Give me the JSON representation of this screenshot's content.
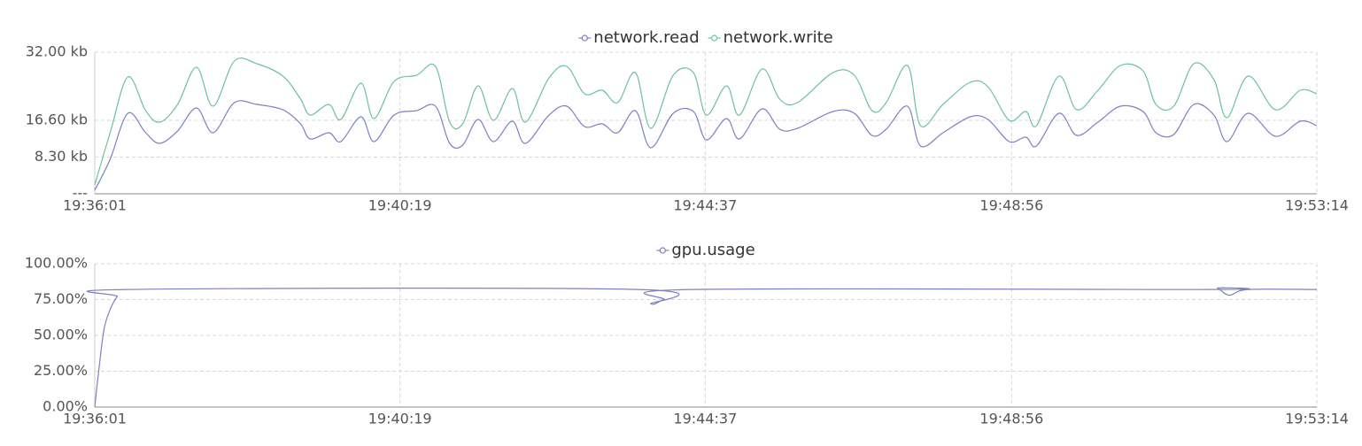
{
  "chart_data": [
    {
      "type": "line",
      "x": [
        "19:36:01",
        "19:36:14",
        "19:36:29",
        "19:36:44",
        "19:36:56",
        "19:37:11",
        "19:37:27",
        "19:37:41",
        "19:37:59",
        "19:38:18",
        "19:38:40",
        "19:38:55",
        "19:39:03",
        "19:39:19",
        "19:39:29",
        "19:39:46",
        "19:39:57",
        "19:40:14",
        "19:40:33",
        "19:40:49",
        "19:41:01",
        "19:41:12",
        "19:41:25",
        "19:41:38",
        "19:41:54",
        "19:42:05",
        "19:42:25",
        "19:42:40",
        "19:42:55",
        "19:43:10",
        "19:43:23",
        "19:43:38",
        "19:43:51",
        "19:44:10",
        "19:44:27",
        "19:44:38",
        "19:44:55",
        "19:45:06",
        "19:45:25",
        "19:45:40",
        "19:45:55",
        "19:46:25",
        "19:46:43",
        "19:46:58",
        "19:47:10",
        "19:47:28",
        "19:47:39",
        "19:47:58",
        "19:48:21",
        "19:48:36",
        "19:48:54",
        "19:49:08",
        "19:49:17",
        "19:49:36",
        "19:49:51",
        "19:50:09",
        "19:50:28",
        "19:50:47",
        "19:50:58",
        "19:51:13",
        "19:51:30",
        "19:51:47",
        "19:51:58",
        "19:52:16",
        "19:52:39",
        "19:53:00",
        "19:53:14"
      ],
      "series": [
        {
          "name": "network.read",
          "color": "#7d80c3",
          "values": [
            0.8,
            7.8,
            18.2,
            13.8,
            11.4,
            14.2,
            19.4,
            13.8,
            20.6,
            20.2,
            19,
            15.8,
            12.4,
            13.8,
            11.8,
            17.4,
            11.8,
            17.8,
            18.8,
            19.8,
            11.4,
            11,
            16.8,
            11.8,
            16.4,
            11.4,
            17.8,
            19.8,
            15.2,
            15.8,
            13.8,
            18.8,
            10.4,
            18.2,
            18.6,
            12.2,
            17,
            12.4,
            19.2,
            14.6,
            14.8,
            18.6,
            18.2,
            13.2,
            14.6,
            19.8,
            10.8,
            13.8,
            17.4,
            16.8,
            11.8,
            12.8,
            10.8,
            18.2,
            13.2,
            16.2,
            19.8,
            18.6,
            13.8,
            13.4,
            20.2,
            17.8,
            11.8,
            18.2,
            13,
            16.4,
            15.4
          ]
        },
        {
          "name": "network.write",
          "color": "#6cc19f",
          "values": [
            2,
            13.8,
            26.4,
            18.8,
            16.2,
            20.2,
            28.6,
            19.8,
            30,
            29.4,
            26.6,
            21.4,
            17.8,
            20.2,
            16.8,
            25,
            17,
            25.4,
            26.8,
            28.8,
            16.2,
            15.8,
            24.4,
            16.6,
            23.8,
            16.2,
            26.2,
            28.8,
            22.6,
            23.4,
            20.6,
            27.4,
            14.8,
            26.8,
            27.4,
            17.8,
            24.4,
            17.8,
            28.2,
            21.4,
            20.6,
            27.4,
            26.8,
            18.8,
            20.6,
            29,
            15.4,
            20.2,
            25.2,
            24.2,
            16.6,
            18.6,
            15.4,
            26.6,
            19,
            23.4,
            29,
            27.8,
            20.2,
            19.8,
            29.4,
            25.8,
            17.2,
            26.6,
            19,
            23.4,
            22.6
          ]
        }
      ],
      "xlim": [
        "19:36:01",
        "19:53:14"
      ],
      "xticks": [
        "19:36:01",
        "19:40:19",
        "19:44:37",
        "19:48:56",
        "19:53:14"
      ],
      "ylim": [
        0,
        32
      ],
      "yticks": [
        {
          "value": 0,
          "label": "---"
        },
        {
          "value": 8.3,
          "label": "8.30 kb"
        },
        {
          "value": 16.6,
          "label": "16.60 kb"
        },
        {
          "value": 32,
          "label": "32.00 kb"
        }
      ],
      "grid": true,
      "legend": "top"
    },
    {
      "type": "line",
      "x": [
        "19:36:01",
        "19:36:05",
        "19:36:09",
        "19:36:14",
        "19:36:20",
        "19:36:29",
        "19:43:40",
        "19:43:51",
        "19:44:02",
        "19:44:25",
        "19:51:43",
        "19:51:50",
        "19:52:00",
        "19:52:16",
        "19:53:14"
      ],
      "series": [
        {
          "name": "gpu.usage",
          "color": "#7d80c3",
          "values": [
            0,
            30,
            55,
            68,
            77,
            82,
            82,
            72,
            75,
            82,
            82,
            83,
            78,
            82,
            82
          ]
        }
      ],
      "xlim": [
        "19:36:01",
        "19:53:14"
      ],
      "xticks": [
        "19:36:01",
        "19:40:19",
        "19:44:37",
        "19:48:56",
        "19:53:14"
      ],
      "ylim": [
        0,
        100
      ],
      "yticks": [
        {
          "value": 0,
          "label": "0.00%"
        },
        {
          "value": 25,
          "label": "25.00%"
        },
        {
          "value": 50,
          "label": "50.00%"
        },
        {
          "value": 75,
          "label": "75.00%"
        },
        {
          "value": 100,
          "label": "100.00%"
        }
      ],
      "grid": true,
      "legend": "top"
    }
  ]
}
